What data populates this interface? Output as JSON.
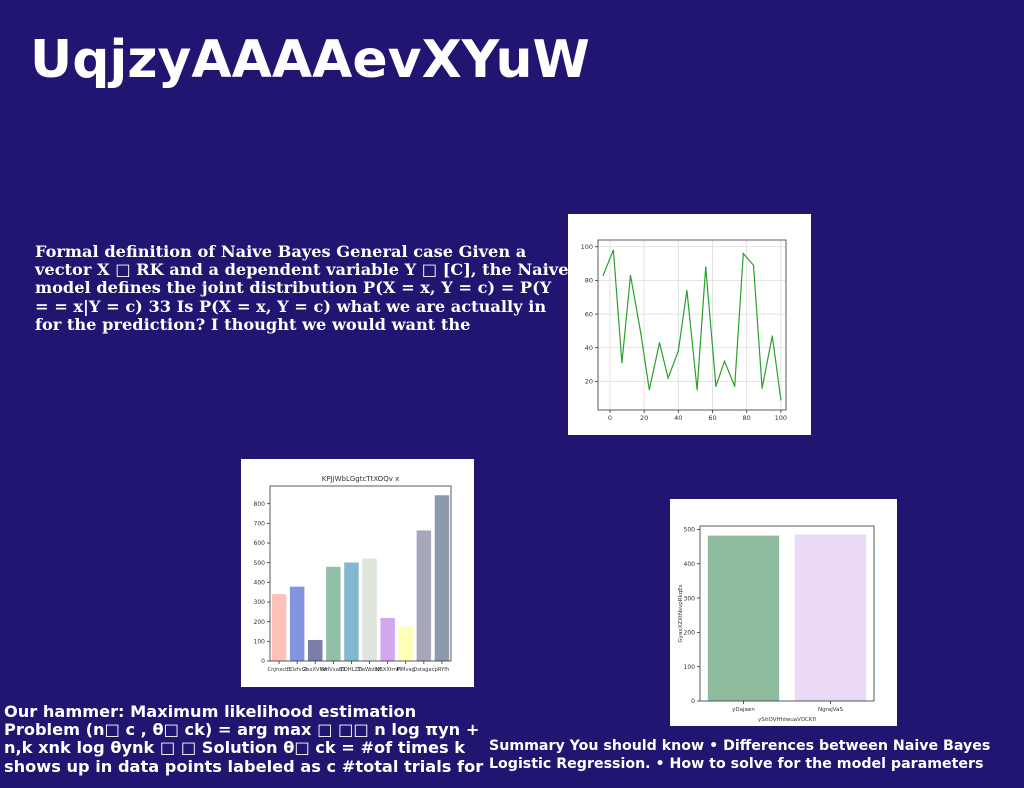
{
  "slide": {
    "title": "UqjzyAAAAevXYuW",
    "body_text": "Formal definition of Naive Bayes General case Given a vector X □ RK and a dependent variable Y □ [C], the Naive model defines the joint distribution P(X = x, Y = c) = P(Y = = x|Y = c) 33 Is P(X = x, Y = c) what we are actually in for the prediction? I thought we would want the",
    "bottom_left_text": "Our hammer: Maximum likelihood estimation Problem (n□ c , θ□ ck) = arg max □ □□ n log πyn + n,k xnk log θynk □ □ Solution θ□ ck = #of times k shows up in data points labeled as c #total trials for",
    "bottom_right_text": "Summary You should know • Differences between Naive Bayes Logistic Regression. • How to solve for the model parameters"
  },
  "chart_data": [
    {
      "type": "line",
      "title": "",
      "xlabel": "",
      "ylabel": "",
      "x": [
        -4,
        2,
        7,
        12,
        18,
        23,
        29,
        34,
        40,
        45,
        51,
        56,
        62,
        67,
        73,
        78,
        84,
        89,
        95,
        100
      ],
      "y": [
        83,
        98,
        31,
        83,
        49,
        15,
        43,
        22,
        38,
        74,
        15,
        88,
        17,
        32,
        17,
        96,
        89,
        16,
        47,
        9
      ],
      "xlim": [
        -7,
        103
      ],
      "ylim": [
        3,
        104
      ],
      "xticks": [
        0,
        20,
        40,
        60,
        80,
        100
      ],
      "yticks": [
        20,
        40,
        60,
        80,
        100
      ],
      "grid": true,
      "color": "#2ca02c"
    },
    {
      "type": "bar",
      "title": "KPJjWbLGgtcTtXOQv x",
      "xlabel": "",
      "ylabel": "",
      "categories": [
        "CnJnxcitt",
        "CDzfvGt",
        "ZsxXVMA",
        "ixHVxaBX",
        "ZDHLZTr",
        "DaWoibX",
        "NBXXtmF",
        "MMvag",
        "Dstagac",
        "pRYfh"
      ],
      "values": [
        340,
        378,
        107,
        479,
        501,
        521,
        219,
        174,
        664,
        843
      ],
      "colors": [
        "#ffc0b8",
        "#8394e0",
        "#7a7fa8",
        "#92bfa7",
        "#85b6cf",
        "#dfe4dc",
        "#cfa9ec",
        "#fefeb8",
        "#a6a8b9",
        "#8d9aae"
      ],
      "ylim": [
        0,
        890
      ],
      "yticks": [
        0,
        100,
        200,
        300,
        400,
        500,
        600,
        700,
        800
      ],
      "grid": false
    },
    {
      "type": "bar",
      "title": "",
      "xlabel": "ySitOVHhIwuaVOCKfl",
      "ylabel": "GyaxXZXtNsvpRkqEs",
      "categories": [
        "yDajaen",
        "NgrajVaS"
      ],
      "values": [
        482,
        485
      ],
      "colors": [
        "#8fbc9f",
        "#eadaf8"
      ],
      "ylim": [
        0,
        510
      ],
      "yticks": [
        0,
        100,
        200,
        300,
        400,
        500
      ],
      "grid": false
    }
  ]
}
